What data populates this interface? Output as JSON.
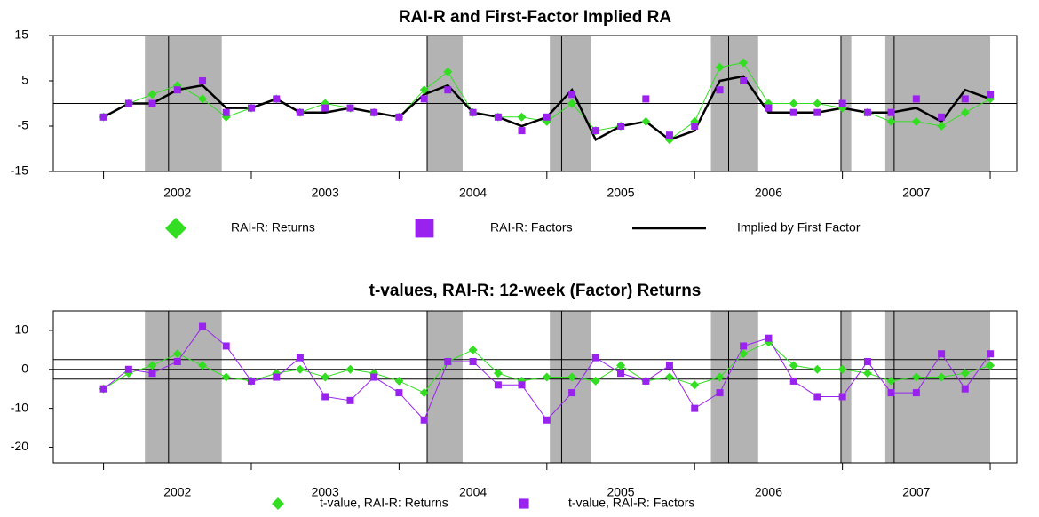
{
  "chart_data": [
    {
      "type": "line",
      "title": "RAI-R and First-Factor Implied RA",
      "x": [
        2002,
        2002.17,
        2002.33,
        2002.5,
        2002.67,
        2002.83,
        2003,
        2003.17,
        2003.33,
        2003.5,
        2003.67,
        2003.83,
        2004,
        2004.17,
        2004.33,
        2004.5,
        2004.67,
        2004.83,
        2005,
        2005.17,
        2005.33,
        2005.5,
        2005.67,
        2005.83,
        2006,
        2006.17,
        2006.33,
        2006.5,
        2006.67,
        2006.83,
        2007,
        2007.17,
        2007.33,
        2007.5,
        2007.67,
        2007.83,
        2008
      ],
      "series": [
        {
          "name": "RAI-R: Returns",
          "color": "#33dd22",
          "line": true,
          "line_width": 1,
          "marker": "diamond",
          "values": [
            -3,
            0,
            2,
            4,
            1,
            -3,
            -1,
            1,
            -2,
            0,
            -1,
            -2,
            -3,
            3,
            7,
            -2,
            -3,
            -3,
            -4,
            0,
            -6,
            -5,
            -4,
            -8,
            -4,
            8,
            9,
            0,
            0,
            0,
            -1,
            -2,
            -4,
            -4,
            -5,
            -2,
            1
          ]
        },
        {
          "name": "RAI-R: Factors",
          "color": "#9922ee",
          "line": false,
          "line_width": 1,
          "marker": "square",
          "values": [
            -3,
            0,
            0,
            3,
            5,
            -2,
            -1,
            1,
            -2,
            -1,
            -1,
            -2,
            -3,
            1,
            3,
            -2,
            -3,
            -6,
            -3,
            2,
            -6,
            -5,
            1,
            -7,
            -5,
            3,
            5,
            -1,
            -2,
            -2,
            0,
            -2,
            -2,
            1,
            -3,
            1,
            2
          ]
        },
        {
          "name": "Implied by First Factor",
          "color": "#000000",
          "line": true,
          "line_width": 2.5,
          "marker": null,
          "values": [
            -3,
            0,
            0,
            3,
            4,
            -1,
            -1,
            1,
            -2,
            -2,
            -1,
            -2,
            -3,
            2,
            4,
            -2,
            -3,
            -5,
            -3,
            3,
            -8,
            -5,
            -4,
            -8,
            -6,
            5,
            6,
            -2,
            -2,
            -2,
            -1,
            -2,
            -2,
            -1,
            -4,
            3,
            1
          ]
        }
      ],
      "xlim": [
        2001.66,
        2008.18
      ],
      "xticks": [
        {
          "value": 2002.5,
          "label": "2002"
        },
        {
          "value": 2003.5,
          "label": "2003"
        },
        {
          "value": 2004.5,
          "label": "2004"
        },
        {
          "value": 2005.5,
          "label": "2005"
        },
        {
          "value": 2006.5,
          "label": "2006"
        },
        {
          "value": 2007.5,
          "label": "2007"
        }
      ],
      "xminor": [
        2002,
        2003,
        2004,
        2005,
        2006,
        2007,
        2008
      ],
      "ylim": [
        -15,
        15
      ],
      "yticks": [
        15,
        5,
        -5,
        -15
      ],
      "hlines": [
        0
      ],
      "shaded": [
        [
          2002.28,
          2002.8
        ],
        [
          2004.19,
          2004.43
        ],
        [
          2005.02,
          2005.3
        ],
        [
          2006.11,
          2006.43
        ],
        [
          2006.99,
          2007.06
        ],
        [
          2007.29,
          2008.0
        ]
      ],
      "vlines": [
        2002.44,
        2004.19,
        2005.1,
        2006.23,
        2006.99,
        2007.35
      ],
      "legend": "bottom"
    },
    {
      "type": "line",
      "title": "t-values, RAI-R: 12-week (Factor) Returns",
      "x": [
        2002,
        2002.17,
        2002.33,
        2002.5,
        2002.67,
        2002.83,
        2003,
        2003.17,
        2003.33,
        2003.5,
        2003.67,
        2003.83,
        2004,
        2004.17,
        2004.33,
        2004.5,
        2004.67,
        2004.83,
        2005,
        2005.17,
        2005.33,
        2005.5,
        2005.67,
        2005.83,
        2006,
        2006.17,
        2006.33,
        2006.5,
        2006.67,
        2006.83,
        2007,
        2007.17,
        2007.33,
        2007.5,
        2007.67,
        2007.83,
        2008
      ],
      "series": [
        {
          "name": "t-value, RAI-R: Returns",
          "color": "#33dd22",
          "line": true,
          "line_width": 1,
          "marker": "diamond",
          "values": [
            -5,
            -1,
            1,
            4,
            1,
            -2,
            -3,
            -1,
            0,
            -2,
            0,
            -1,
            -3,
            -6,
            2,
            5,
            -1,
            -3,
            -2,
            -2,
            -3,
            1,
            -3,
            -2,
            -4,
            -2,
            4,
            7,
            1,
            0,
            0,
            -1,
            -3,
            -2,
            -2,
            -1,
            1
          ]
        },
        {
          "name": "t-value, RAI-R: Factors",
          "color": "#9922ee",
          "line": true,
          "line_width": 1,
          "marker": "square",
          "values": [
            -5,
            0,
            -1,
            2,
            11,
            6,
            -3,
            -2,
            3,
            -7,
            -8,
            -2,
            -6,
            -13,
            2,
            2,
            -4,
            -4,
            -13,
            -6,
            3,
            -1,
            -3,
            1,
            -10,
            -6,
            6,
            8,
            -3,
            -7,
            -7,
            2,
            -6,
            -6,
            4,
            -5,
            4
          ]
        }
      ],
      "xlim": [
        2001.66,
        2008.18
      ],
      "xticks": [
        {
          "value": 2002.5,
          "label": "2002"
        },
        {
          "value": 2003.5,
          "label": "2003"
        },
        {
          "value": 2004.5,
          "label": "2004"
        },
        {
          "value": 2005.5,
          "label": "2005"
        },
        {
          "value": 2006.5,
          "label": "2006"
        },
        {
          "value": 2007.5,
          "label": "2007"
        }
      ],
      "xminor": [
        2002,
        2003,
        2004,
        2005,
        2006,
        2007,
        2008
      ],
      "ylim": [
        -24,
        15
      ],
      "yticks": [
        10,
        0,
        -10,
        -20
      ],
      "hlines": [
        2.5,
        0,
        -2.5
      ],
      "shaded": [
        [
          2002.28,
          2002.8
        ],
        [
          2004.19,
          2004.43
        ],
        [
          2005.02,
          2005.3
        ],
        [
          2006.11,
          2006.43
        ],
        [
          2006.99,
          2007.06
        ],
        [
          2007.29,
          2008.0
        ]
      ],
      "vlines": [
        2002.44,
        2004.19,
        2005.1,
        2006.23,
        2006.99,
        2007.35
      ],
      "legend": "bottom"
    }
  ]
}
